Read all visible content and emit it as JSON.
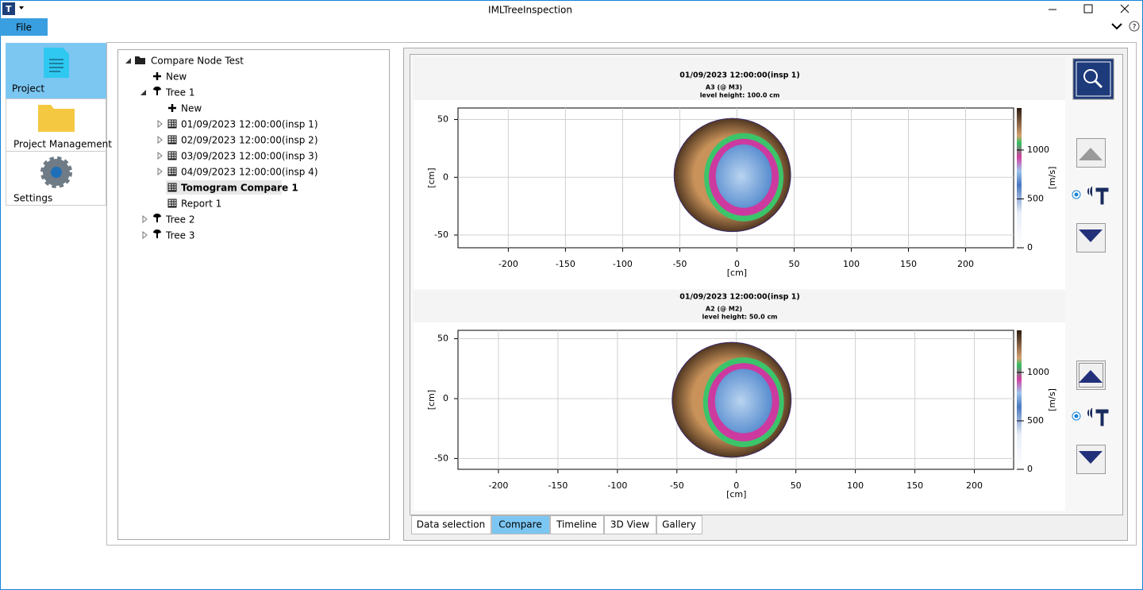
{
  "window": {
    "title": "IMLTreeInspection"
  },
  "menu": {
    "file": "File"
  },
  "sidebar": [
    "Project",
    "Project Management",
    "Settings"
  ],
  "tree": [
    "Compare Node Test",
    "New",
    "Tree 1",
    "New",
    "01/09/2023 12:00:00(insp 1)",
    "02/09/2023 12:00:00(insp 2)",
    "03/09/2023 12:00:00(insp 3)",
    "04/09/2023 12:00:00(insp 4)",
    "Tomogram Compare 1",
    "Report 1",
    "Tree 2",
    "Tree 3"
  ],
  "charts": [
    {
      "type": "tomogram",
      "title": "01/09/2023 12:00:00(insp 1)",
      "subtitle": "A3 (@ M3)",
      "level": "level height: 100.0 cm",
      "xlabel": "[cm]",
      "ylabel": "[cm]",
      "clabel": "[m/s]",
      "xlim": [
        -244,
        242
      ],
      "xticks": [
        -200,
        -150,
        -100,
        -50,
        0,
        50,
        100,
        150,
        200
      ],
      "ylim": [
        -61,
        60
      ],
      "yticks": [
        -50,
        0,
        50
      ],
      "clim": [
        0,
        1430
      ],
      "cticks": [
        0,
        500,
        1000
      ]
    },
    {
      "type": "tomogram",
      "title": "01/09/2023 12:00:00(insp 1)",
      "subtitle": "A2 (@ M2)",
      "level": "level height: 50.0 cm",
      "xlabel": "[cm]",
      "ylabel": "[cm]",
      "clabel": "[m/s]",
      "xlim": [
        -234,
        233
      ],
      "xticks": [
        -200,
        -150,
        -100,
        -50,
        0,
        50,
        100,
        150,
        200
      ],
      "ylim": [
        -59,
        57
      ],
      "yticks": [
        -50,
        0,
        50
      ],
      "clim": [
        0,
        1434
      ],
      "cticks": [
        0,
        500,
        1000
      ]
    }
  ],
  "tabs": [
    "Data selection",
    "Compare",
    "Timeline",
    "3D View",
    "Gallery"
  ]
}
